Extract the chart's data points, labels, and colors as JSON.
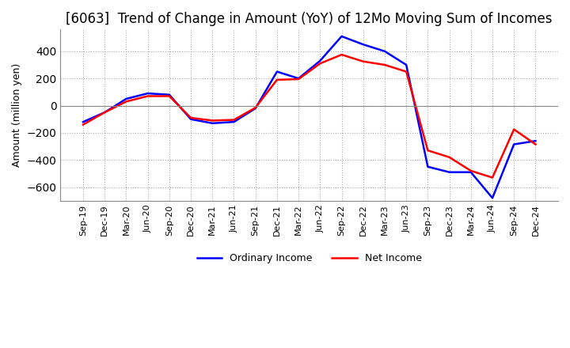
{
  "title": "[6063]  Trend of Change in Amount (YoY) of 12Mo Moving Sum of Incomes",
  "ylabel": "Amount (million yen)",
  "x_labels": [
    "Sep-19",
    "Dec-19",
    "Mar-20",
    "Jun-20",
    "Sep-20",
    "Dec-20",
    "Mar-21",
    "Jun-21",
    "Sep-21",
    "Dec-21",
    "Mar-22",
    "Jun-22",
    "Sep-22",
    "Dec-22",
    "Mar-23",
    "Jun-23",
    "Sep-23",
    "Dec-23",
    "Mar-24",
    "Jun-24",
    "Sep-24",
    "Dec-24"
  ],
  "ordinary_income": [
    -120,
    -50,
    50,
    90,
    80,
    -100,
    -130,
    -120,
    -20,
    250,
    200,
    330,
    510,
    450,
    400,
    300,
    -450,
    -490,
    -490,
    -680,
    -285,
    -260
  ],
  "net_income": [
    -140,
    -50,
    30,
    70,
    70,
    -90,
    -110,
    -105,
    -15,
    190,
    195,
    310,
    375,
    325,
    300,
    250,
    -330,
    -380,
    -480,
    -530,
    -175,
    -285
  ],
  "ordinary_color": "#0000ff",
  "net_color": "#ff0000",
  "ylim": [
    -700,
    560
  ],
  "yticks": [
    -600,
    -400,
    -200,
    0,
    200,
    400
  ],
  "grid_color": "#aaaaaa",
  "background_color": "#ffffff",
  "title_fontsize": 12,
  "axis_fontsize": 9,
  "tick_fontsize": 8,
  "legend_fontsize": 9
}
